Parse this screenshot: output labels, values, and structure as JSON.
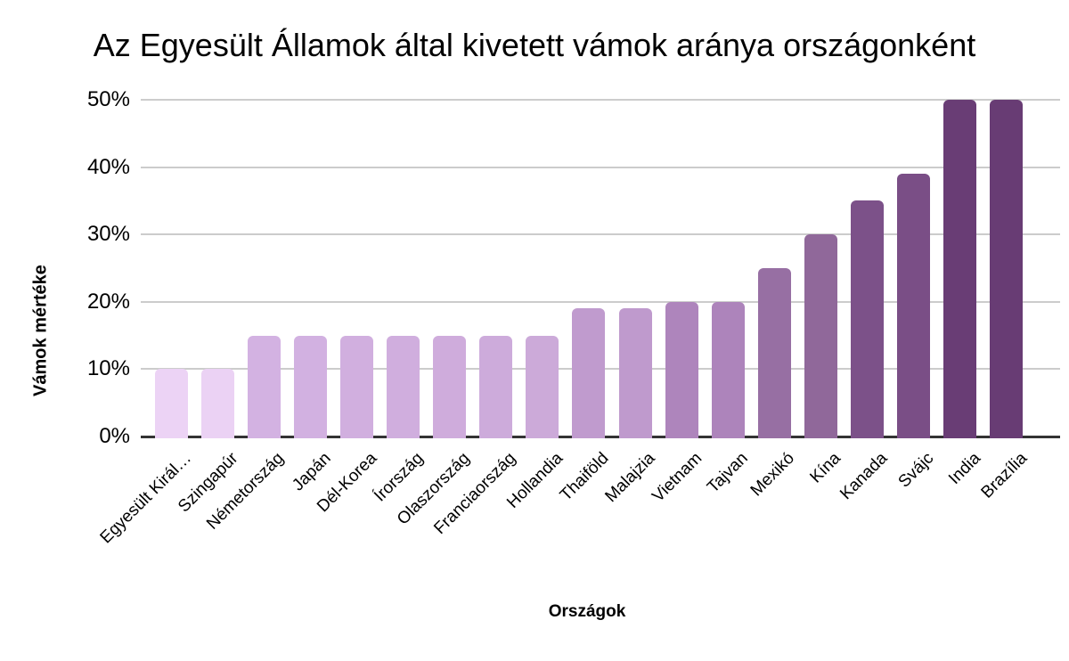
{
  "chart_data": {
    "type": "bar",
    "title": "Az Egyesült Államok által kivetett vámok aránya országonként",
    "xlabel": "Országok",
    "ylabel": "Vámok mértéke",
    "ylim": [
      0,
      50
    ],
    "grid": true,
    "legend": false,
    "yticks": {
      "values": [
        0,
        10,
        20,
        30,
        40,
        50
      ],
      "labels": [
        "0%",
        "10%",
        "20%",
        "30%",
        "40%",
        "50%"
      ]
    },
    "categories": [
      "Egyesült Királ…",
      "Szingapúr",
      "Németország",
      "Japán",
      "Dél-Korea",
      "Írország",
      "Olaszország",
      "Franciaország",
      "Hollandia",
      "Thaiföld",
      "Malajzia",
      "Vietnam",
      "Tajvan",
      "Mexikó",
      "Kína",
      "Kanada",
      "Svájc",
      "India",
      "Brazília"
    ],
    "values": [
      10,
      10,
      15,
      15,
      15,
      15,
      15,
      15,
      15,
      19,
      19,
      20,
      20,
      25,
      30,
      35,
      39,
      50,
      50
    ],
    "bar_colors": [
      "#ecd3f5",
      "#ebd2f4",
      "#d3b2e2",
      "#d2b1e1",
      "#d1afdf",
      "#d0aede",
      "#cfacdc",
      "#cdabdb",
      "#ccaad9",
      "#c09bce",
      "#bf9acd",
      "#ae85bc",
      "#ad84bb",
      "#976fa3",
      "#90689a",
      "#7c5189",
      "#7a4e86",
      "#693d75",
      "#683c74"
    ],
    "colors": {
      "gridline": "#cccccc",
      "axis_line": "#333333",
      "text": "#000000",
      "background": "#ffffff"
    }
  }
}
